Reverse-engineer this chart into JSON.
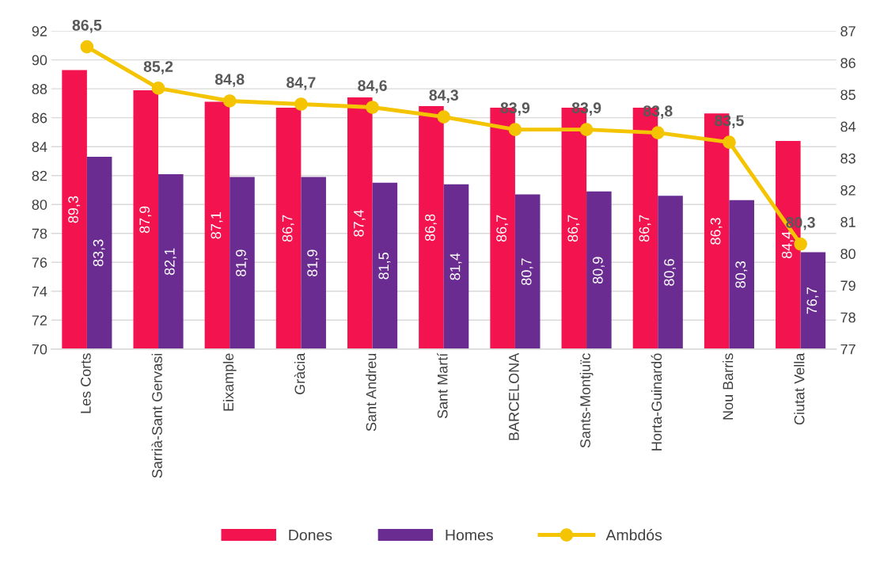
{
  "chart_data": {
    "type": "bar",
    "categories": [
      "Les Corts",
      "Sarrià-Sant Gervasi",
      "Eixample",
      "Gràcia",
      "Sant Andreu",
      "Sant Martí",
      "BARCELONA",
      "Sants-Montjuïc",
      "Horta-Guinardó",
      "Nou Barris",
      "Ciutat Vella"
    ],
    "series": [
      {
        "name": "Dones",
        "color": "#f2134f",
        "values": [
          89.3,
          87.9,
          87.1,
          86.7,
          87.4,
          86.8,
          86.7,
          86.7,
          86.7,
          86.3,
          84.4
        ],
        "value_labels": [
          "89,3",
          "87,9",
          "87,1",
          "86,7",
          "87,4",
          "86,8",
          "86,7",
          "86,7",
          "86,7",
          "86,3",
          "84,4"
        ]
      },
      {
        "name": "Homes",
        "color": "#6a2c91",
        "values": [
          83.3,
          82.1,
          81.9,
          81.9,
          81.5,
          81.4,
          80.7,
          80.9,
          80.6,
          80.3,
          76.7
        ],
        "value_labels": [
          "83,3",
          "82,1",
          "81,9",
          "81,9",
          "81,5",
          "81,4",
          "80,7",
          "80,9",
          "80,6",
          "80,3",
          "76,7"
        ]
      },
      {
        "name": "Ambdós",
        "type": "line",
        "axis": "y2",
        "color": "#f5c400",
        "marker": "circle",
        "values": [
          86.5,
          85.2,
          84.8,
          84.7,
          84.6,
          84.3,
          83.9,
          83.9,
          83.8,
          83.5,
          80.3
        ],
        "value_labels": [
          "86,5",
          "85,2",
          "84,8",
          "84,7",
          "84,6",
          "84,3",
          "83,9",
          "83,9",
          "83,8",
          "83,5",
          "80,3"
        ]
      }
    ],
    "ylim": [
      70,
      92
    ],
    "yticks": [
      70,
      72,
      74,
      76,
      78,
      80,
      82,
      84,
      86,
      88,
      90,
      92
    ],
    "y2lim": [
      77,
      87
    ],
    "y2ticks": [
      77,
      78,
      79,
      80,
      81,
      82,
      83,
      84,
      85,
      86,
      87
    ],
    "grid": "y",
    "legend": "bottom"
  }
}
